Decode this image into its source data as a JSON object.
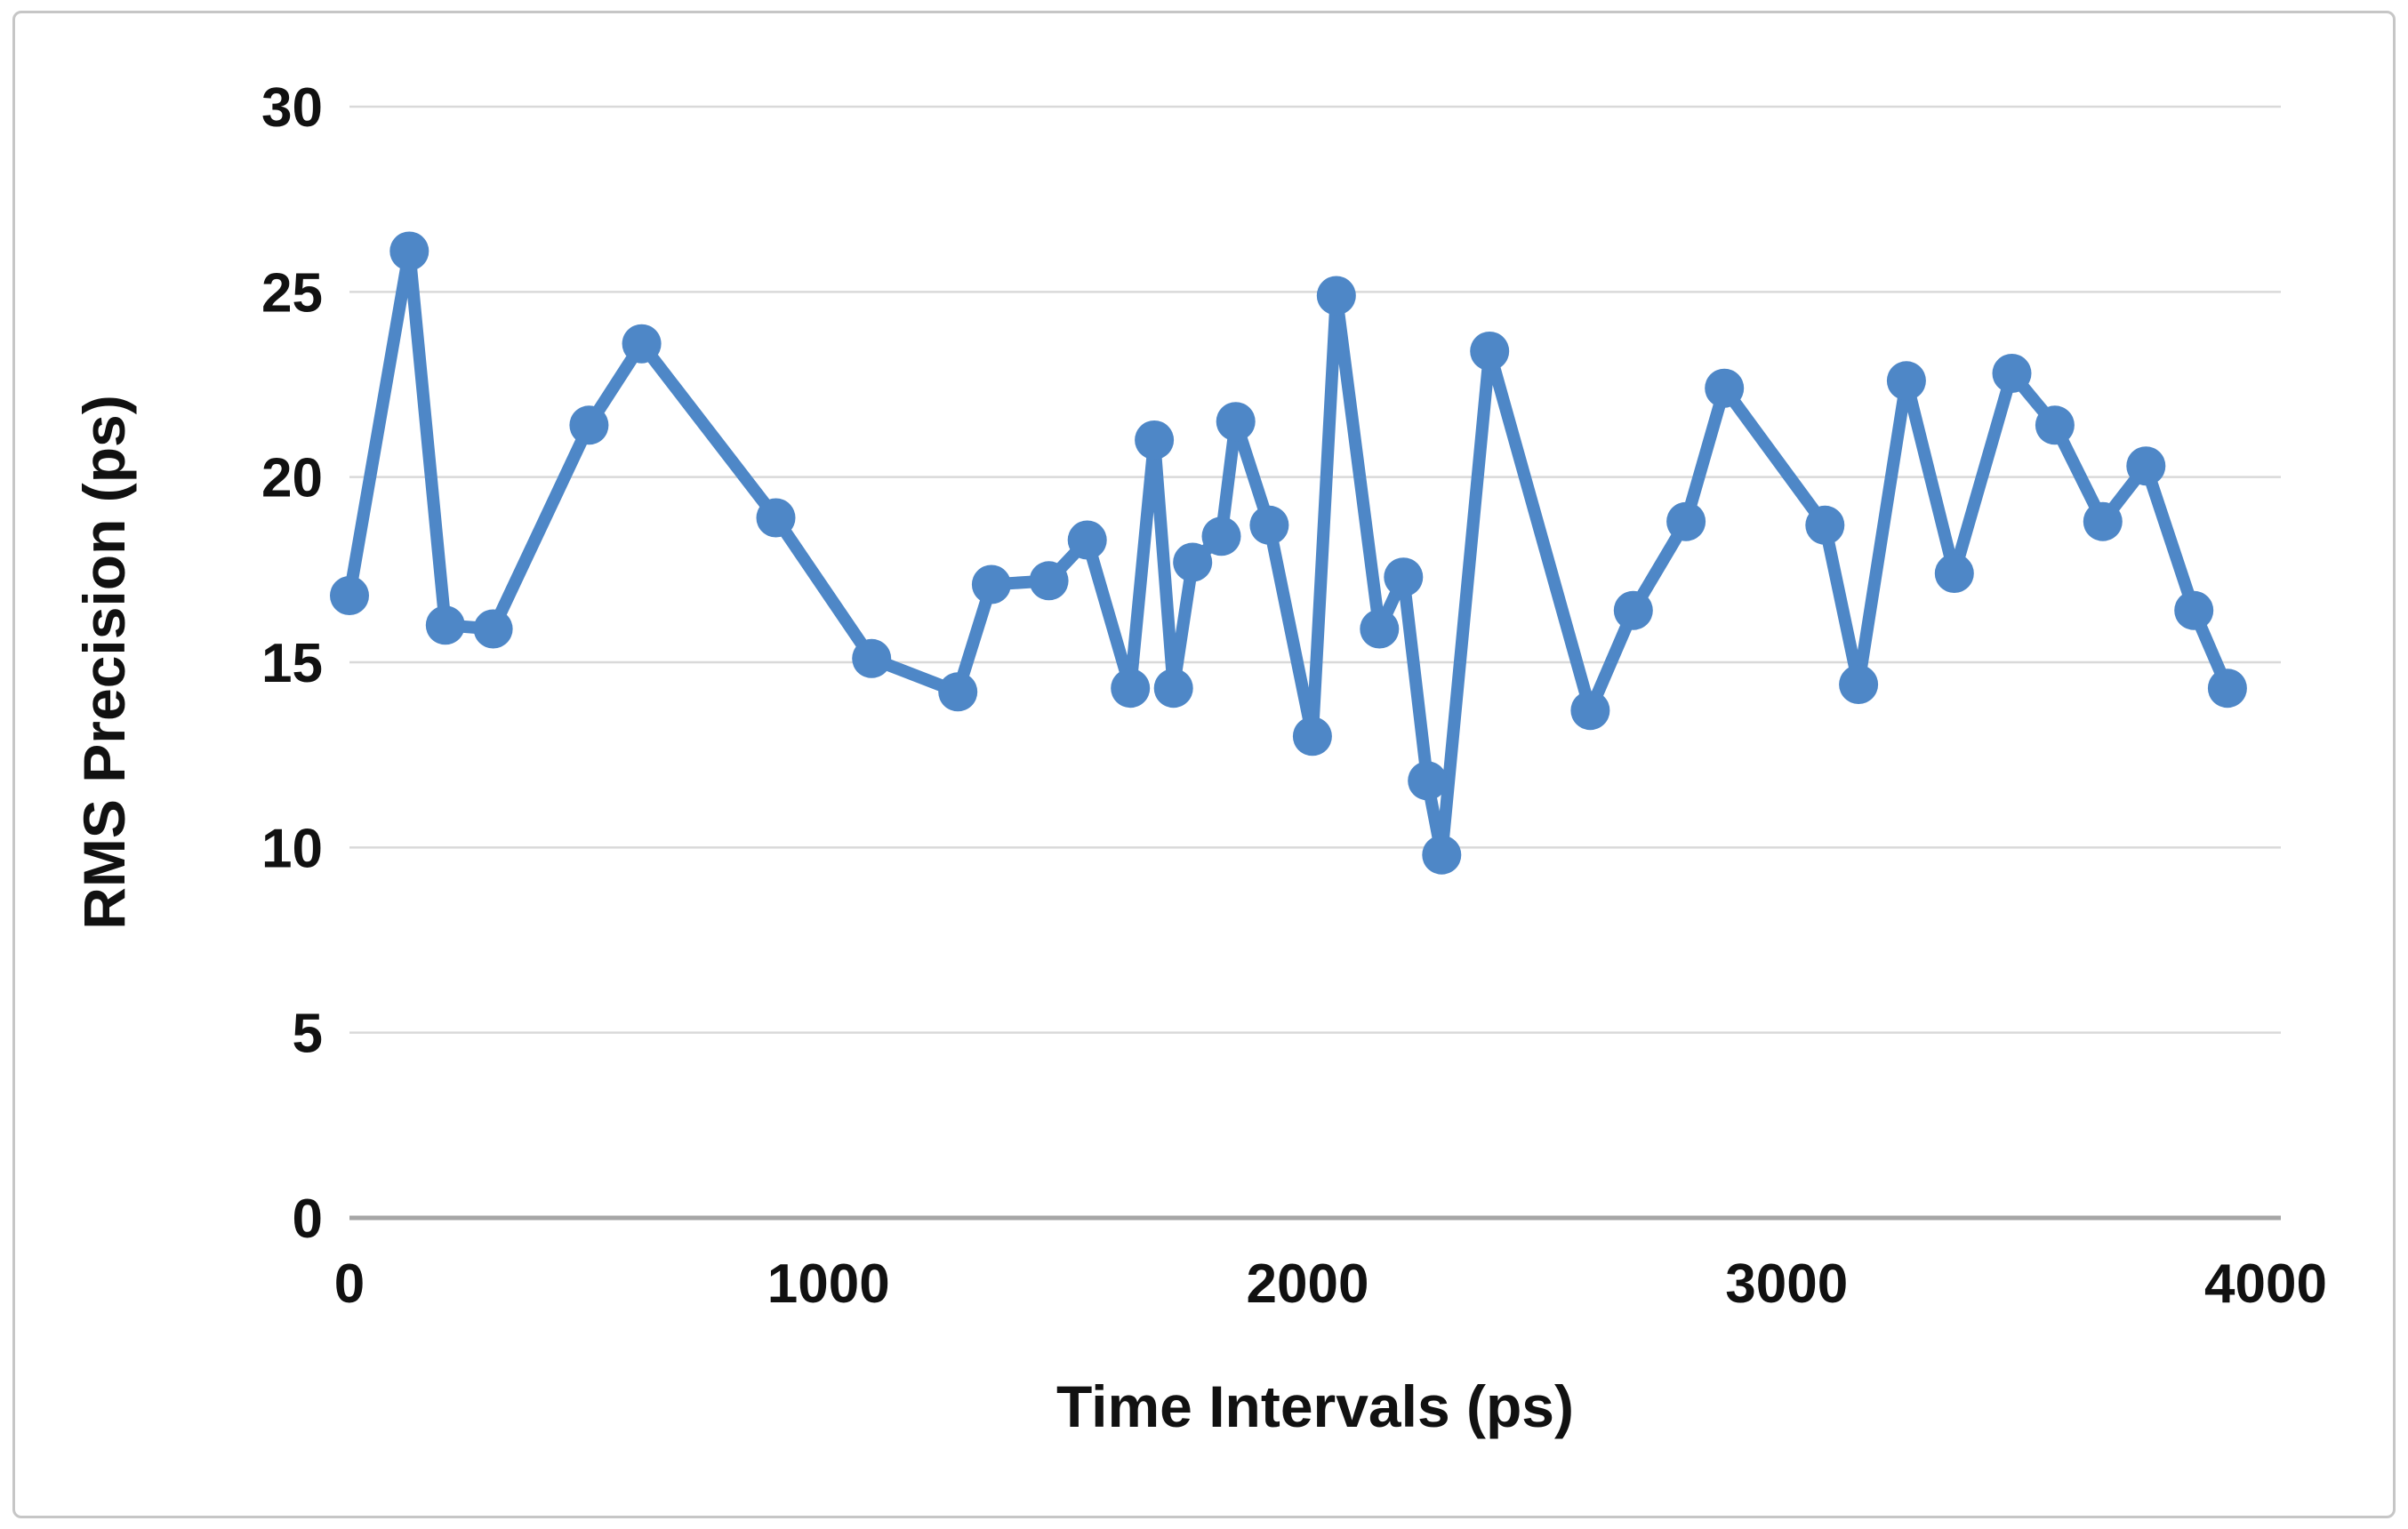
{
  "figure": {
    "background": "#ffffff",
    "border_color": "#c6c6c6"
  },
  "chart_data": {
    "type": "line",
    "title": "",
    "xlabel": "Time Intervals (ps)",
    "ylabel": "RMS Precision (ps)",
    "x_ticks": [
      0,
      1000,
      2000,
      3000,
      4000
    ],
    "y_ticks": [
      0,
      5,
      10,
      15,
      20,
      25,
      30
    ],
    "xlim": [
      0,
      4030
    ],
    "ylim": [
      0,
      30
    ],
    "grid": "horizontal-only",
    "legend": "none",
    "gridline_color": "#d9d9d9",
    "axis_line_color": "#a6a6a6",
    "text_color": "#111111",
    "series": [
      {
        "name": "RMS Precision",
        "color": "#4E87C7",
        "marker": "circle",
        "points": [
          [
            0,
            16.8
          ],
          [
            125,
            26.1
          ],
          [
            200,
            16.0
          ],
          [
            300,
            15.9
          ],
          [
            500,
            21.4
          ],
          [
            610,
            23.6
          ],
          [
            890,
            18.9
          ],
          [
            1090,
            15.1
          ],
          [
            1270,
            14.2
          ],
          [
            1340,
            17.1
          ],
          [
            1460,
            17.2
          ],
          [
            1540,
            18.3
          ],
          [
            1630,
            14.3
          ],
          [
            1680,
            21.0
          ],
          [
            1720,
            14.3
          ],
          [
            1760,
            17.7
          ],
          [
            1820,
            18.4
          ],
          [
            1850,
            21.5
          ],
          [
            1920,
            18.7
          ],
          [
            2010,
            13.0
          ],
          [
            2060,
            24.9
          ],
          [
            2150,
            15.9
          ],
          [
            2200,
            17.3
          ],
          [
            2250,
            11.8
          ],
          [
            2280,
            9.8
          ],
          [
            2380,
            23.4
          ],
          [
            2590,
            13.7
          ],
          [
            2680,
            16.4
          ],
          [
            2790,
            18.8
          ],
          [
            2870,
            22.4
          ],
          [
            3080,
            18.7
          ],
          [
            3150,
            14.4
          ],
          [
            3250,
            22.6
          ],
          [
            3350,
            17.4
          ],
          [
            3470,
            22.8
          ],
          [
            3560,
            21.4
          ],
          [
            3660,
            18.8
          ],
          [
            3750,
            20.3
          ],
          [
            3850,
            16.4
          ],
          [
            3920,
            14.3
          ]
        ]
      }
    ]
  }
}
